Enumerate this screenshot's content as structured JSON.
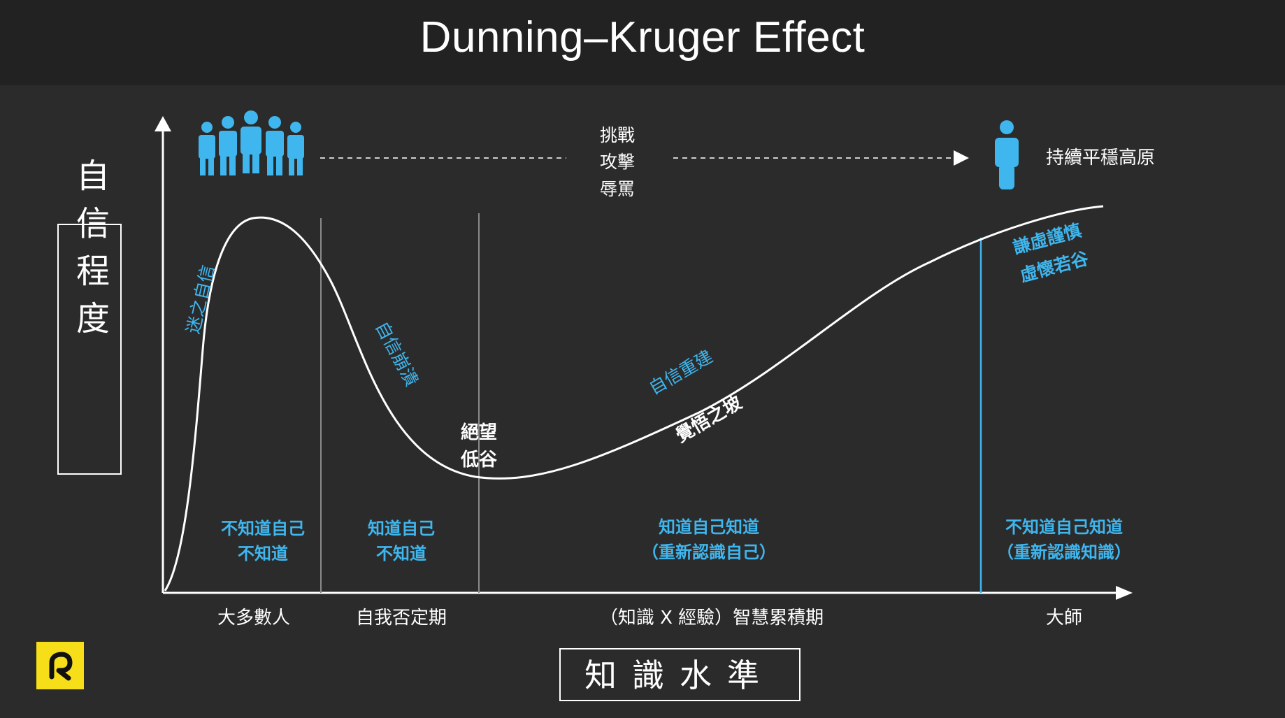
{
  "title": "Dunning–Kruger Effect",
  "colors": {
    "background": "#2b2b2b",
    "title_bar": "#222222",
    "accent_blue": "#3fb6ee",
    "curve": "#ffffff",
    "logo_yellow": "#f6df19"
  },
  "y_axis_label": "自信程度",
  "x_axis_label": "知識水準",
  "top_messages": [
    "挑戰",
    "攻擊",
    "辱罵"
  ],
  "plateau_label": "持續平穩高原",
  "curve_labels": {
    "rise": "迷之自信",
    "fall": "自信崩潰",
    "valley": [
      "絕望",
      "低谷"
    ],
    "rebuild": "自信重建",
    "slope": "覺悟之坡",
    "master": [
      "謙虛謹慎",
      "虛懷若谷"
    ]
  },
  "stage_notes": [
    [
      "不知道自己",
      "不知道"
    ],
    [
      "知道自己",
      "不知道"
    ],
    [
      "知道自己知道",
      "（重新認識自己）"
    ],
    [
      "不知道自己知道",
      "（重新認識知識）"
    ]
  ],
  "stage_names": [
    "大多數人",
    "自我否定期",
    "（知識 X 經驗）智慧累積期",
    "大師"
  ],
  "icons": {
    "crowd": "group-of-people-icon",
    "person": "single-person-icon",
    "logo": "brand-logo-icon"
  }
}
